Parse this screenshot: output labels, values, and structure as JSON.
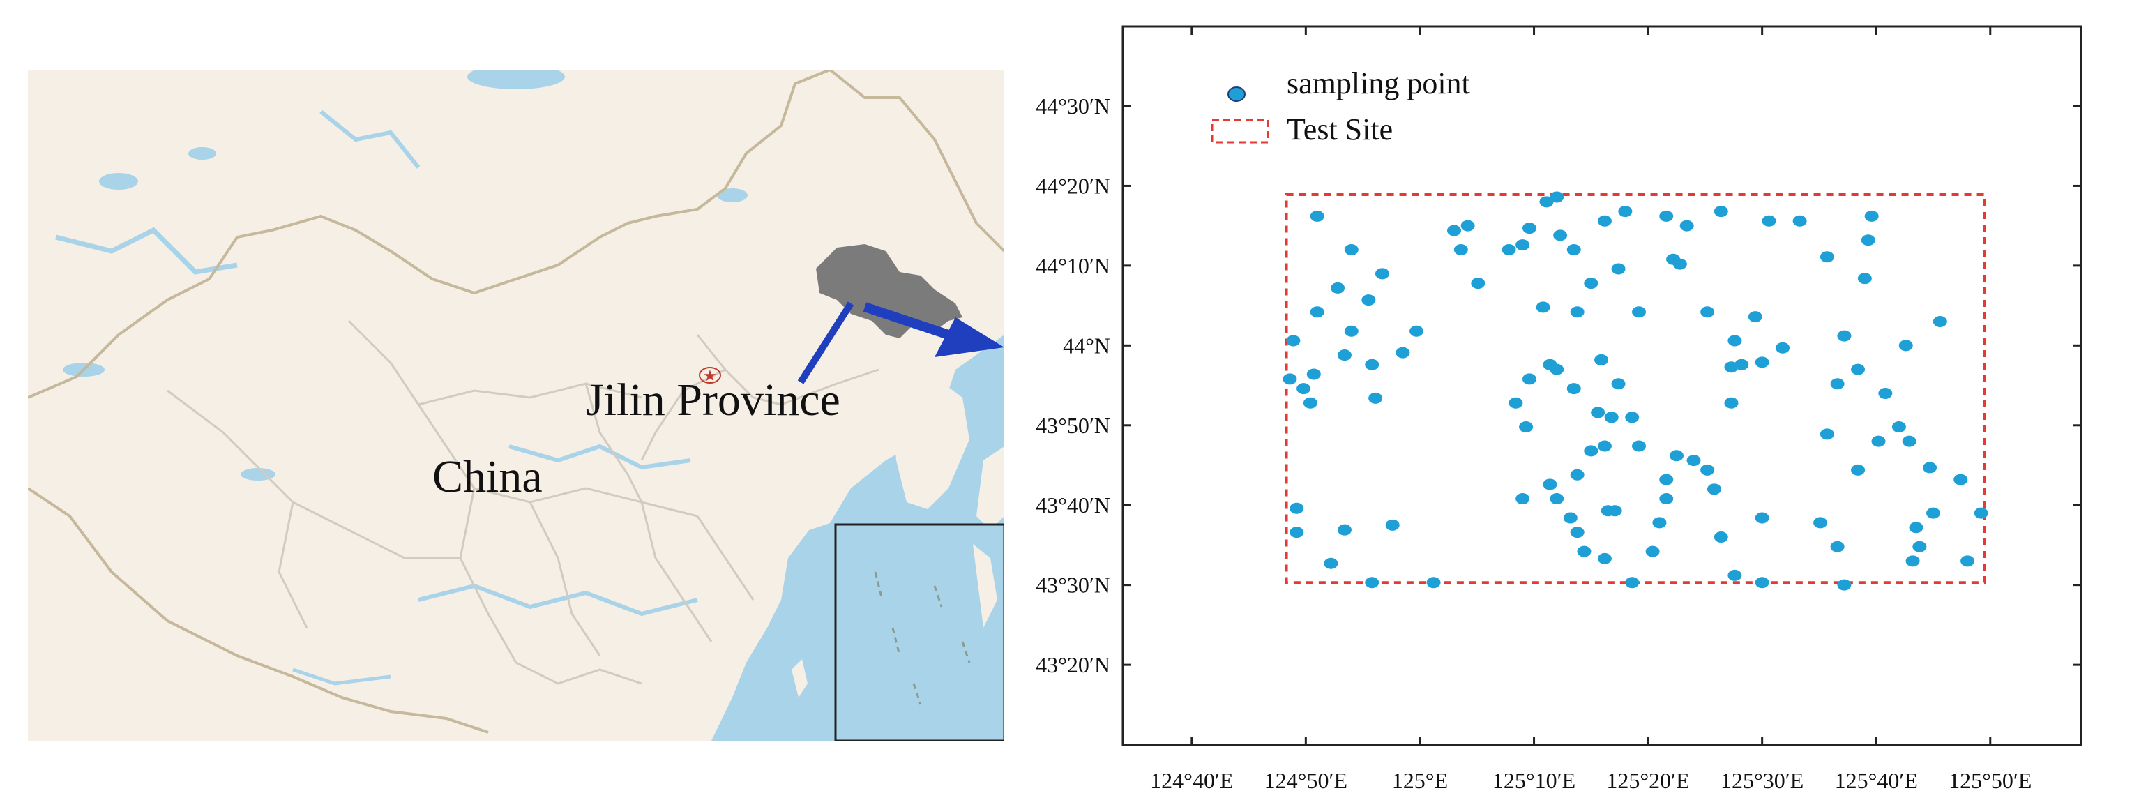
{
  "map": {
    "country_label": "China",
    "province_label": "Jilin Province",
    "colors": {
      "land": "#f5efe6",
      "sea": "#a9d3e8",
      "highlight": "#7b7b7b",
      "arrow": "#1f3fbf",
      "border": "#c6b89a",
      "province_border": "#d2cbc1",
      "capital_marker": "#c0392b"
    }
  },
  "chart_data": {
    "type": "scatter",
    "title": "",
    "xlabel": "",
    "ylabel": "",
    "xlim": [
      124.566,
      125.966
    ],
    "ylim": [
      43.166,
      44.666
    ],
    "x_ticks": [
      {
        "value": 124.6667,
        "label": "124°40′E"
      },
      {
        "value": 124.8333,
        "label": "124°50′E"
      },
      {
        "value": 125.0,
        "label": "125°E"
      },
      {
        "value": 125.1667,
        "label": "125°10′E"
      },
      {
        "value": 125.3333,
        "label": "125°20′E"
      },
      {
        "value": 125.5,
        "label": "125°30′E"
      },
      {
        "value": 125.6667,
        "label": "125°40′E"
      },
      {
        "value": 125.8333,
        "label": "125°50′E"
      }
    ],
    "y_ticks": [
      {
        "value": 43.3333,
        "label": "43°20′N"
      },
      {
        "value": 43.5,
        "label": "43°30′N"
      },
      {
        "value": 43.6667,
        "label": "43°40′N"
      },
      {
        "value": 43.8333,
        "label": "43°50′N"
      },
      {
        "value": 44.0,
        "label": "44°N"
      },
      {
        "value": 44.1667,
        "label": "44°10′N"
      },
      {
        "value": 44.3333,
        "label": "44°20′N"
      },
      {
        "value": 44.5,
        "label": "44°30′N"
      }
    ],
    "legend": {
      "position": "top-left",
      "entries": [
        {
          "label": "sampling point",
          "marker": "dot",
          "color": "#1e9fd6"
        },
        {
          "label": "Test Site",
          "marker": "dashed-rect",
          "color": "#e53935"
        }
      ]
    },
    "test_site": {
      "x0": 124.805,
      "x1": 125.825,
      "y0": 43.505,
      "y1": 44.315
    },
    "series": [
      {
        "name": "sampling point",
        "color": "#1e9fd6",
        "points": [
          [
            124.85,
            44.27
          ],
          [
            124.9,
            44.2
          ],
          [
            124.85,
            44.07
          ],
          [
            124.88,
            44.12
          ],
          [
            124.925,
            44.095
          ],
          [
            124.9,
            44.03
          ],
          [
            124.945,
            44.15
          ],
          [
            124.93,
            43.96
          ],
          [
            124.89,
            43.98
          ],
          [
            124.815,
            44.01
          ],
          [
            124.81,
            43.93
          ],
          [
            124.84,
            43.88
          ],
          [
            124.845,
            43.94
          ],
          [
            124.83,
            43.91
          ],
          [
            124.935,
            43.89
          ],
          [
            124.995,
            44.03
          ],
          [
            124.975,
            43.985
          ],
          [
            125.06,
            44.2
          ],
          [
            125.07,
            44.25
          ],
          [
            125.05,
            44.24
          ],
          [
            125.085,
            44.13
          ],
          [
            125.15,
            44.21
          ],
          [
            125.13,
            44.2
          ],
          [
            125.16,
            44.245
          ],
          [
            125.2,
            44.31
          ],
          [
            125.185,
            44.3
          ],
          [
            125.23,
            44.07
          ],
          [
            125.2,
            43.95
          ],
          [
            125.16,
            43.93
          ],
          [
            125.18,
            44.08
          ],
          [
            125.19,
            43.96
          ],
          [
            125.225,
            44.2
          ],
          [
            125.205,
            44.23
          ],
          [
            125.265,
            43.97
          ],
          [
            125.225,
            43.91
          ],
          [
            125.26,
            43.86
          ],
          [
            125.29,
            43.92
          ],
          [
            125.32,
            44.07
          ],
          [
            125.29,
            44.16
          ],
          [
            125.3,
            44.28
          ],
          [
            125.27,
            44.26
          ],
          [
            125.25,
            44.13
          ],
          [
            125.38,
            44.17
          ],
          [
            125.36,
            44.27
          ],
          [
            125.37,
            44.18
          ],
          [
            125.39,
            44.25
          ],
          [
            125.44,
            44.28
          ],
          [
            125.42,
            44.07
          ],
          [
            125.455,
            43.955
          ],
          [
            125.49,
            44.06
          ],
          [
            125.46,
            44.01
          ],
          [
            125.455,
            43.88
          ],
          [
            125.47,
            43.96
          ],
          [
            125.5,
            43.965
          ],
          [
            125.51,
            44.26
          ],
          [
            125.53,
            43.995
          ],
          [
            125.555,
            44.26
          ],
          [
            125.595,
            44.185
          ],
          [
            125.61,
            43.92
          ],
          [
            125.62,
            44.02
          ],
          [
            125.64,
            43.95
          ],
          [
            125.65,
            44.14
          ],
          [
            125.66,
            44.27
          ],
          [
            125.655,
            44.22
          ],
          [
            125.71,
            44.0
          ],
          [
            125.715,
            43.8
          ],
          [
            125.7,
            43.83
          ],
          [
            125.68,
            43.9
          ],
          [
            125.75,
            43.65
          ],
          [
            125.745,
            43.745
          ],
          [
            125.79,
            43.72
          ],
          [
            125.725,
            43.62
          ],
          [
            125.73,
            43.58
          ],
          [
            125.72,
            43.55
          ],
          [
            125.76,
            44.05
          ],
          [
            125.82,
            43.65
          ],
          [
            125.8,
            43.55
          ],
          [
            125.67,
            43.8
          ],
          [
            125.64,
            43.74
          ],
          [
            125.595,
            43.815
          ],
          [
            125.585,
            43.63
          ],
          [
            125.62,
            43.5
          ],
          [
            125.5,
            43.64
          ],
          [
            125.5,
            43.505
          ],
          [
            125.46,
            43.52
          ],
          [
            125.44,
            43.6
          ],
          [
            125.43,
            43.7
          ],
          [
            125.42,
            43.74
          ],
          [
            125.4,
            43.76
          ],
          [
            125.375,
            43.77
          ],
          [
            125.36,
            43.72
          ],
          [
            125.36,
            43.68
          ],
          [
            125.35,
            43.63
          ],
          [
            125.34,
            43.57
          ],
          [
            125.32,
            43.79
          ],
          [
            125.31,
            43.85
          ],
          [
            125.28,
            43.85
          ],
          [
            125.27,
            43.79
          ],
          [
            125.25,
            43.78
          ],
          [
            125.23,
            43.73
          ],
          [
            125.22,
            43.64
          ],
          [
            125.23,
            43.61
          ],
          [
            125.24,
            43.57
          ],
          [
            125.2,
            43.68
          ],
          [
            125.19,
            43.71
          ],
          [
            125.15,
            43.68
          ],
          [
            125.27,
            43.555
          ],
          [
            125.31,
            43.505
          ],
          [
            125.275,
            43.655
          ],
          [
            125.285,
            43.655
          ],
          [
            125.155,
            43.83
          ],
          [
            125.14,
            43.88
          ],
          [
            124.82,
            43.61
          ],
          [
            124.82,
            43.66
          ],
          [
            124.87,
            43.545
          ],
          [
            124.89,
            43.615
          ],
          [
            124.93,
            43.505
          ],
          [
            125.02,
            43.505
          ],
          [
            124.96,
            43.625
          ],
          [
            125.61,
            43.58
          ]
        ]
      }
    ]
  }
}
